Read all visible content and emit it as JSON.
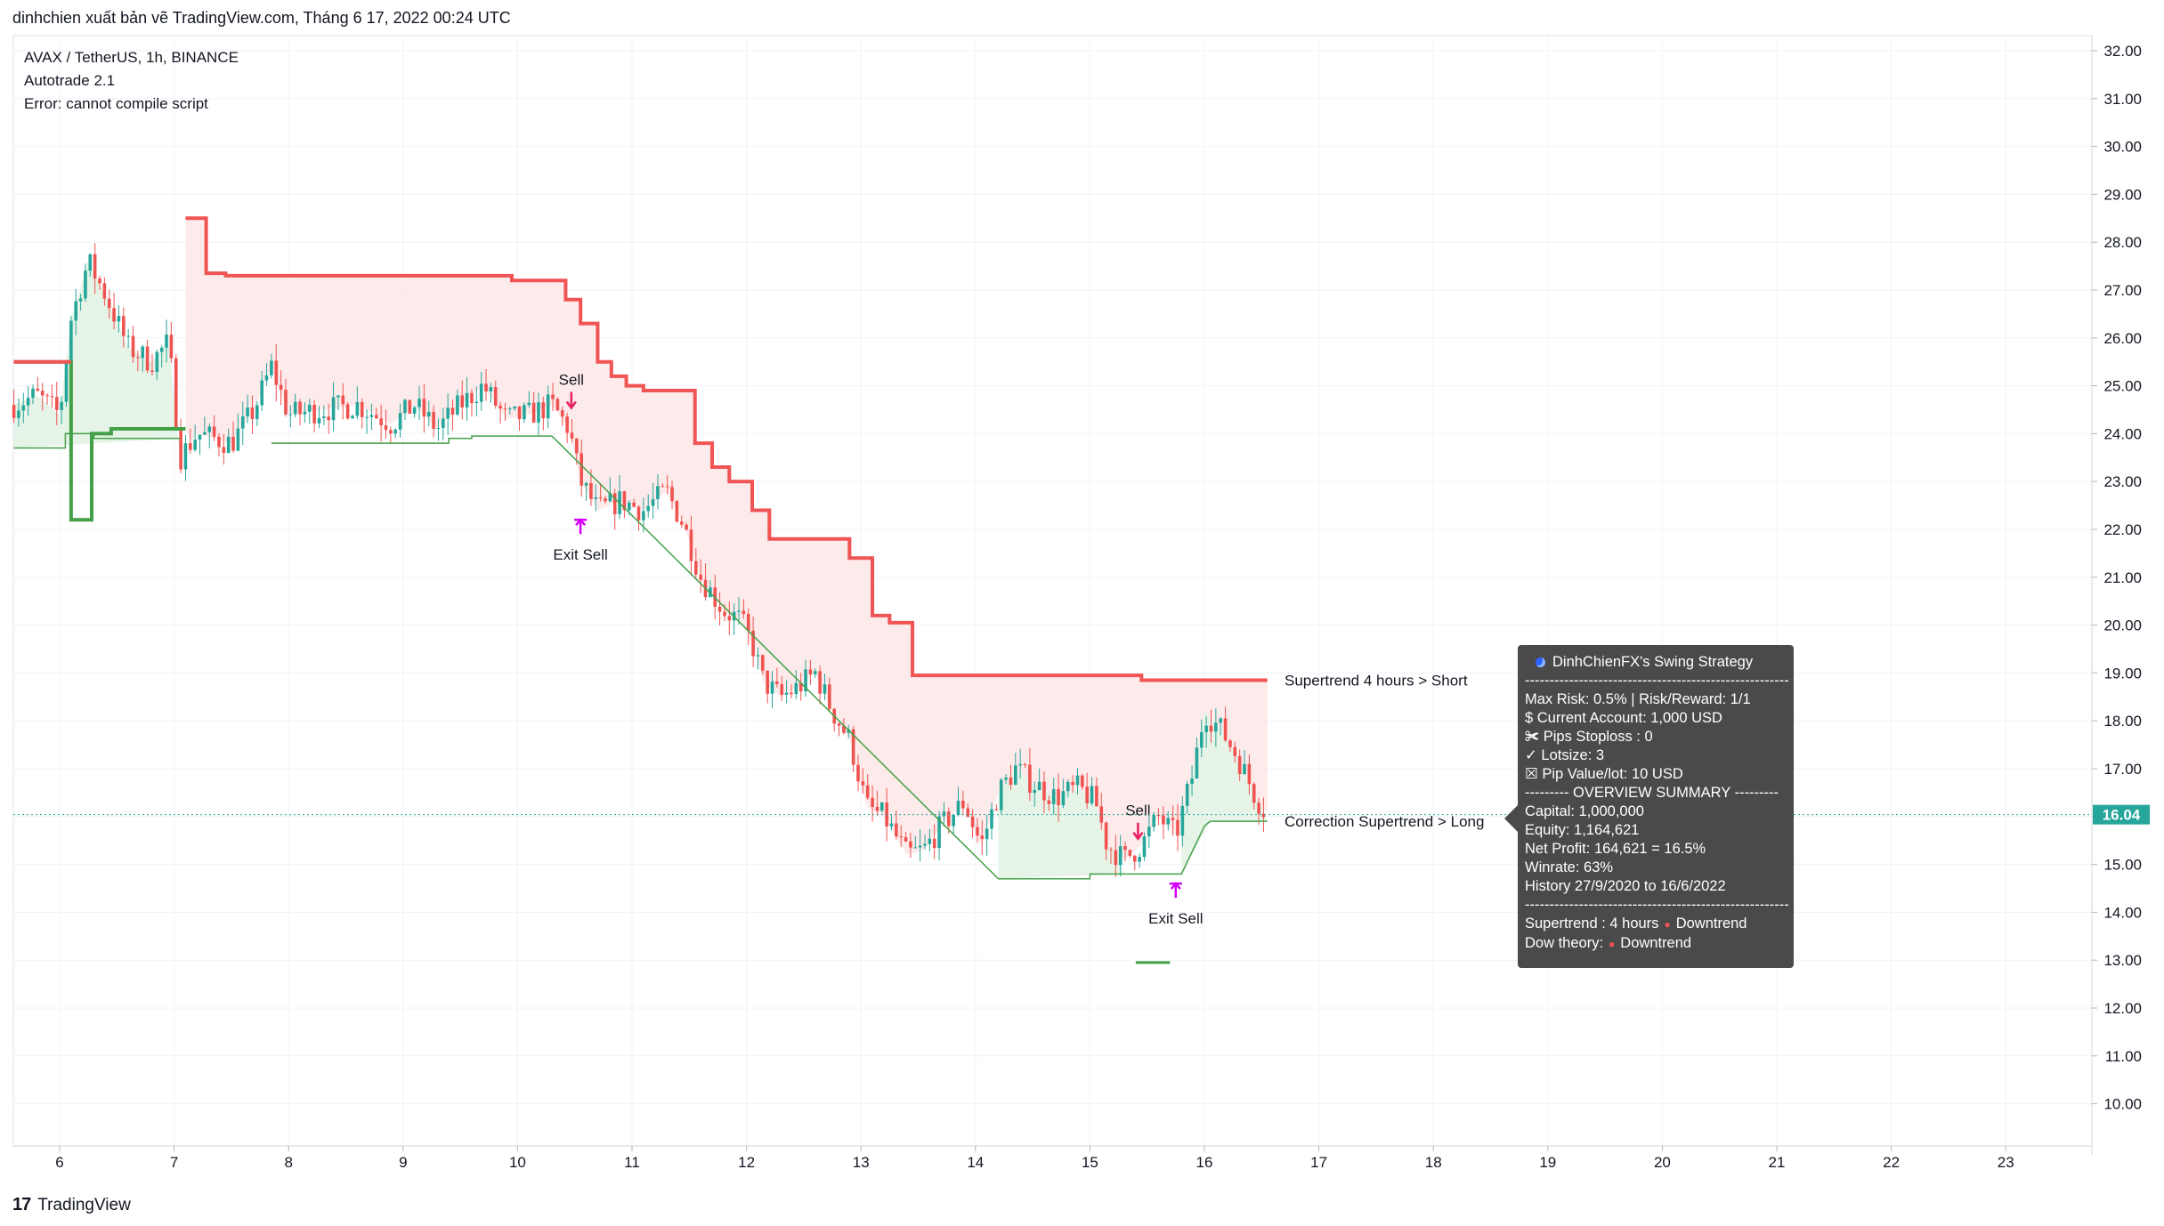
{
  "header": {
    "publish_line": "dinhchien xuất bản vẽ TradingView.com, Tháng 6 17, 2022 00:24 UTC"
  },
  "legend": {
    "symbol": "AVAX / TetherUS, 1h, BINANCE",
    "indicator": "Autotrade 2.1",
    "error": "Error: cannot compile script"
  },
  "footer": {
    "brand": "TradingView",
    "logo_text": "17"
  },
  "colors": {
    "up": "#26a69a",
    "down": "#ef5350",
    "supertrend_short": "#f05454",
    "supertrend_long": "#43a047",
    "short_fill": "#fde6e6",
    "long_fill": "#e6f4e8",
    "marker": "#d500f9",
    "sell_arrow": "#e91e63",
    "price_label_bg": "#26a69a"
  },
  "chart_data": {
    "type": "candlestick",
    "symbol": "AVAX / TetherUS",
    "interval": "1h",
    "exchange": "BINANCE",
    "ylim": [
      9.2,
      32.3
    ],
    "y_ticks": [
      "32.00",
      "31.00",
      "30.00",
      "29.00",
      "28.00",
      "27.00",
      "26.00",
      "25.00",
      "24.00",
      "23.00",
      "22.00",
      "21.00",
      "20.00",
      "19.00",
      "18.00",
      "17.00",
      "16.00",
      "15.00",
      "14.00",
      "13.00",
      "12.00",
      "11.00",
      "10.00"
    ],
    "x_ticks": [
      "6",
      "7",
      "8",
      "9",
      "10",
      "11",
      "12",
      "13",
      "14",
      "15",
      "16",
      "17",
      "18",
      "19",
      "20",
      "21",
      "22",
      "23"
    ],
    "last_price": "16.04",
    "close_path_days_price": [
      [
        5.6,
        24.6
      ],
      [
        5.8,
        24.8
      ],
      [
        6.0,
        24.4
      ],
      [
        6.1,
        26.4
      ],
      [
        6.25,
        27.6
      ],
      [
        6.4,
        26.9
      ],
      [
        6.6,
        25.8
      ],
      [
        6.8,
        25.5
      ],
      [
        6.95,
        25.9
      ],
      [
        7.0,
        24.8
      ],
      [
        7.05,
        23.5
      ],
      [
        7.2,
        24.0
      ],
      [
        7.5,
        23.8
      ],
      [
        7.7,
        24.5
      ],
      [
        7.85,
        25.4
      ],
      [
        8.0,
        24.4
      ],
      [
        8.3,
        24.5
      ],
      [
        8.6,
        24.6
      ],
      [
        8.9,
        24.2
      ],
      [
        9.1,
        24.6
      ],
      [
        9.3,
        24.1
      ],
      [
        9.5,
        24.6
      ],
      [
        9.7,
        25.0
      ],
      [
        9.9,
        24.3
      ],
      [
        10.1,
        24.4
      ],
      [
        10.3,
        24.6
      ],
      [
        10.45,
        24.1
      ],
      [
        10.55,
        23.0
      ],
      [
        10.7,
        22.4
      ],
      [
        10.9,
        22.6
      ],
      [
        11.1,
        22.4
      ],
      [
        11.3,
        22.8
      ],
      [
        11.45,
        22.1
      ],
      [
        11.6,
        21.0
      ],
      [
        11.8,
        20.3
      ],
      [
        11.95,
        20.1
      ],
      [
        12.05,
        19.6
      ],
      [
        12.15,
        18.8
      ],
      [
        12.3,
        18.5
      ],
      [
        12.45,
        18.7
      ],
      [
        12.6,
        19.0
      ],
      [
        12.75,
        18.2
      ],
      [
        12.9,
        17.6
      ],
      [
        13.05,
        16.2
      ],
      [
        13.2,
        16.0
      ],
      [
        13.4,
        15.2
      ],
      [
        13.55,
        15.3
      ],
      [
        13.7,
        15.8
      ],
      [
        13.9,
        16.3
      ],
      [
        14.05,
        15.4
      ],
      [
        14.2,
        16.5
      ],
      [
        14.35,
        17.0
      ],
      [
        14.5,
        16.7
      ],
      [
        14.7,
        16.4
      ],
      [
        14.9,
        16.6
      ],
      [
        15.05,
        16.3
      ],
      [
        15.15,
        15.4
      ],
      [
        15.3,
        15.1
      ],
      [
        15.45,
        15.4
      ],
      [
        15.6,
        16.0
      ],
      [
        15.75,
        15.6
      ],
      [
        15.9,
        16.9
      ],
      [
        16.0,
        18.2
      ],
      [
        16.15,
        17.8
      ],
      [
        16.3,
        17.2
      ],
      [
        16.45,
        16.4
      ],
      [
        16.55,
        16.04
      ]
    ],
    "supertrend_4h": [
      [
        5.6,
        25.5
      ],
      [
        6.1,
        25.5
      ],
      [
        6.1,
        22.2
      ],
      [
        6.28,
        22.2
      ],
      [
        6.28,
        24.0
      ],
      [
        6.45,
        24.0
      ],
      [
        6.45,
        24.1
      ],
      [
        7.1,
        24.1
      ],
      [
        7.1,
        28.5
      ],
      [
        7.28,
        28.5
      ],
      [
        7.28,
        27.35
      ],
      [
        7.45,
        27.35
      ],
      [
        7.45,
        27.3
      ],
      [
        9.95,
        27.3
      ],
      [
        9.95,
        27.2
      ],
      [
        10.42,
        27.2
      ],
      [
        10.42,
        26.8
      ],
      [
        10.55,
        26.8
      ],
      [
        10.55,
        26.3
      ],
      [
        10.7,
        26.3
      ],
      [
        10.7,
        25.5
      ],
      [
        10.82,
        25.5
      ],
      [
        10.82,
        25.2
      ],
      [
        10.95,
        25.2
      ],
      [
        10.95,
        25.0
      ],
      [
        11.1,
        25.0
      ],
      [
        11.1,
        24.9
      ],
      [
        11.55,
        24.9
      ],
      [
        11.55,
        23.8
      ],
      [
        11.7,
        23.8
      ],
      [
        11.7,
        23.3
      ],
      [
        11.85,
        23.3
      ],
      [
        11.85,
        23.0
      ],
      [
        12.05,
        23.0
      ],
      [
        12.05,
        22.4
      ],
      [
        12.2,
        22.4
      ],
      [
        12.2,
        21.8
      ],
      [
        12.9,
        21.8
      ],
      [
        12.9,
        21.4
      ],
      [
        13.1,
        21.4
      ],
      [
        13.1,
        20.2
      ],
      [
        13.25,
        20.2
      ],
      [
        13.25,
        20.05
      ],
      [
        13.45,
        20.05
      ],
      [
        13.45,
        18.95
      ],
      [
        15.45,
        18.95
      ],
      [
        15.45,
        18.85
      ],
      [
        16.55,
        18.85
      ]
    ],
    "correction_supertrend": [
      [
        5.6,
        23.7
      ],
      [
        6.05,
        23.7
      ],
      [
        6.05,
        24.0
      ],
      [
        6.3,
        24.0
      ],
      [
        6.3,
        23.9
      ],
      [
        7.05,
        23.9
      ],
      [
        7.05,
        null
      ],
      [
        7.85,
        null
      ],
      [
        7.85,
        23.8
      ],
      [
        9.4,
        23.8
      ],
      [
        9.4,
        23.9
      ],
      [
        9.6,
        23.9
      ],
      [
        9.6,
        23.95
      ],
      [
        10.3,
        23.95
      ],
      [
        14.2,
        14.7
      ],
      [
        15.0,
        14.7
      ],
      [
        15.0,
        14.8
      ],
      [
        15.3,
        14.8
      ],
      [
        15.8,
        14.8
      ],
      [
        16.0,
        15.8
      ],
      [
        16.05,
        15.9
      ],
      [
        16.55,
        15.9
      ]
    ],
    "extra_segment": [
      [
        15.4,
        12.95
      ],
      [
        15.7,
        12.95
      ]
    ],
    "signals": [
      {
        "label": "Sell",
        "day": 10.47,
        "price": 24.5
      },
      {
        "label": "Exit Sell",
        "day": 10.55,
        "price": 22.2
      },
      {
        "label": "Sell",
        "day": 15.42,
        "price": 15.5
      },
      {
        "label": "Exit Sell",
        "day": 15.75,
        "price": 14.6
      }
    ],
    "right_labels": [
      {
        "text": "Supertrend 4 hours > Short",
        "price": 18.85
      },
      {
        "text": "Correction Supertrend  > Long",
        "price": 15.9
      }
    ]
  },
  "info_panel": {
    "title": "DinhChienFX's Swing Strategy",
    "divider": "------------------------------------------------------",
    "max_risk": "Max Risk: 0.5% | Risk/Reward: 1/1",
    "current_account": "$ Current Account: 1,000 USD",
    "pips_stoploss": "✀ Pips Stoploss : 0",
    "lotsize": "✓ Lotsize: 3",
    "pip_value": "☒ Pip Value/lot: 10 USD",
    "overview": "--------- OVERVIEW SUMMARY ---------",
    "capital": "Capital: 1,000,000",
    "equity": "Equity: 1,164,621",
    "net_profit": "Net Profit: 164,621 = 16.5%",
    "winrate": "Winrate: 63%",
    "history": "History 27/9/2020 to 16/6/2022",
    "supertrend_label": "Supertrend : 4 hours",
    "supertrend_value": "Downtrend",
    "dow_label": "Dow theory:",
    "dow_value": "Downtrend"
  }
}
